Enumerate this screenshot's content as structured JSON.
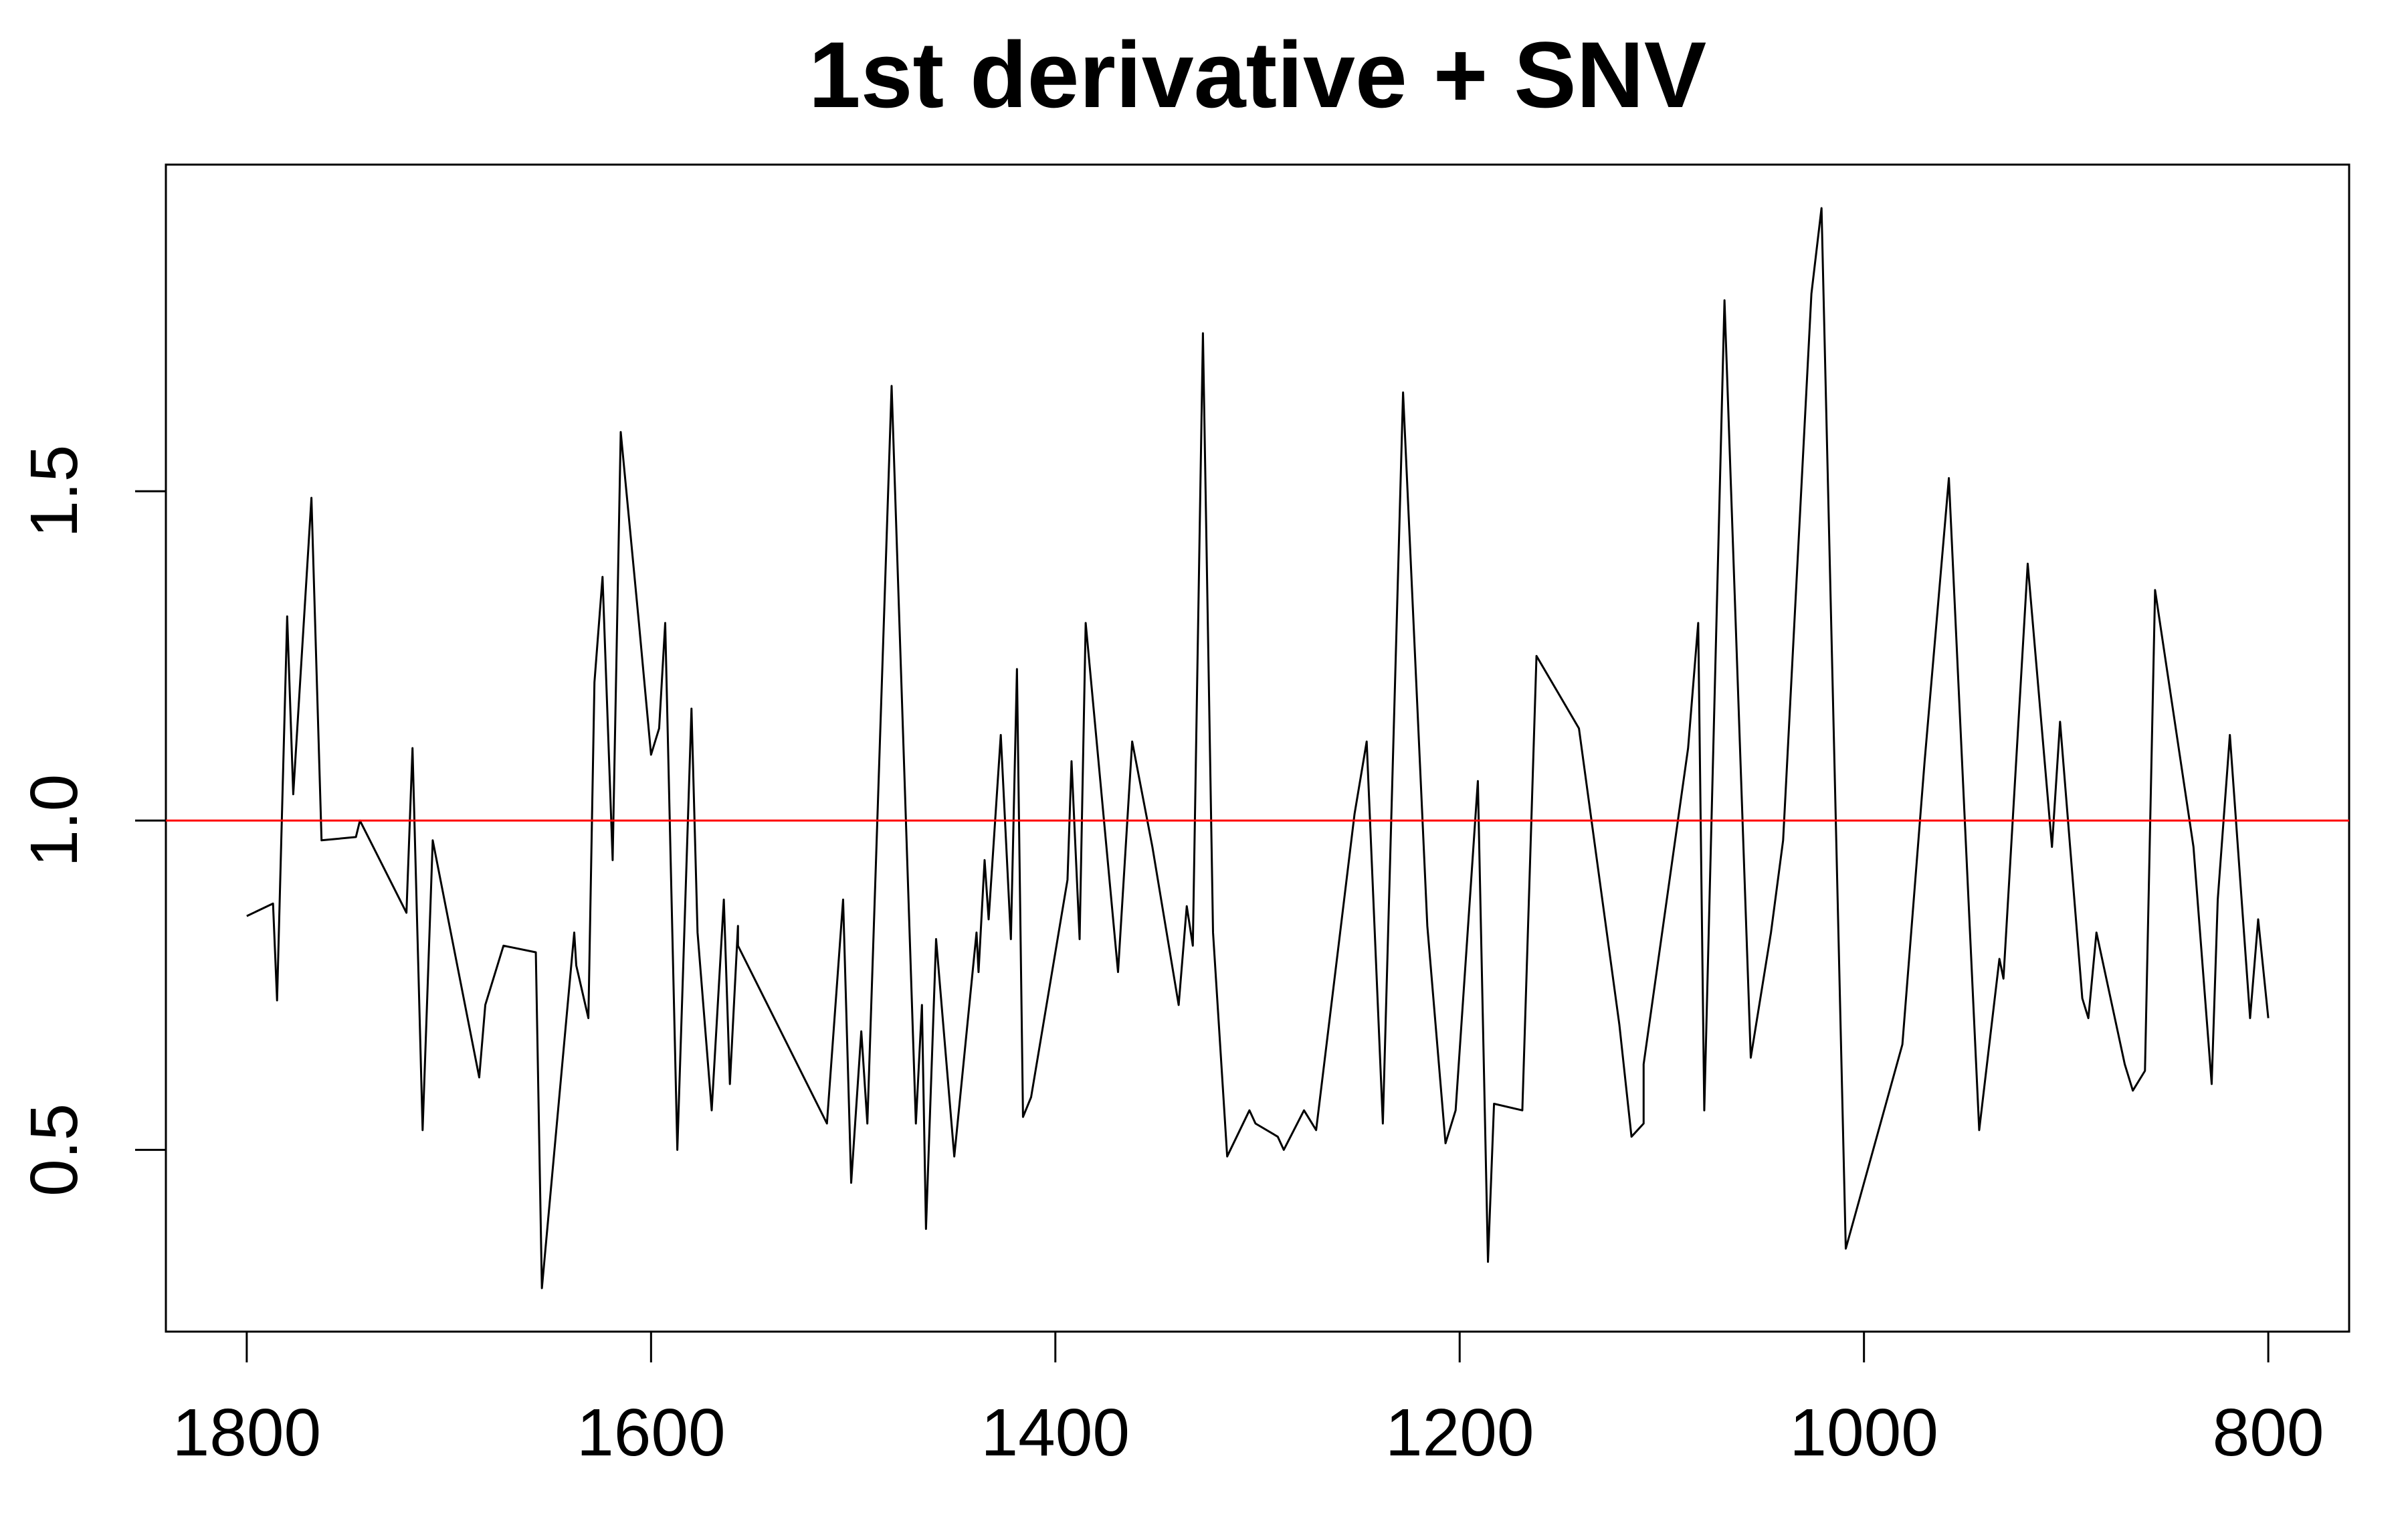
{
  "chart_data": {
    "type": "line",
    "title": "1st derivative + SNV",
    "x": [
      1800,
      1787,
      1785,
      1780,
      1777,
      1768,
      1763,
      1746,
      1744,
      1721,
      1718,
      1713,
      1708,
      1685,
      1682,
      1673,
      1657,
      1654,
      1638,
      1637,
      1631,
      1628,
      1624,
      1619,
      1615,
      1606,
      1600,
      1596,
      1593,
      1587,
      1580,
      1577,
      1570,
      1564,
      1561,
      1557,
      1557,
      1513,
      1505,
      1501,
      1496,
      1493,
      1481,
      1469,
      1466,
      1464,
      1459,
      1450,
      1439,
      1438,
      1435,
      1433,
      1427,
      1422,
      1419,
      1416,
      1412,
      1394,
      1392,
      1388,
      1385,
      1369,
      1362,
      1352,
      1339,
      1335,
      1332,
      1327,
      1322,
      1315,
      1304,
      1301,
      1290,
      1287,
      1277,
      1271,
      1252,
      1246,
      1238,
      1228,
      1216,
      1207,
      1202,
      1191,
      1186,
      1183,
      1169,
      1162,
      1141,
      1121,
      1115,
      1109,
      1109,
      1087,
      1082,
      1079,
      1069,
      1056,
      1046,
      1040,
      1026,
      1021,
      1009,
      981,
      970,
      958,
      943,
      933,
      931,
      919,
      907,
      903,
      892,
      889,
      885,
      871,
      867,
      861,
      856,
      837,
      828,
      825,
      819,
      809,
      805,
      800
    ],
    "values": [
      0.855,
      0.874,
      0.727,
      1.31,
      1.04,
      1.49,
      0.97,
      0.975,
      1.0,
      0.86,
      1.11,
      0.53,
      0.97,
      0.61,
      0.72,
      0.81,
      0.8,
      0.29,
      0.83,
      0.78,
      0.7,
      1.21,
      1.37,
      0.94,
      1.59,
      1.3,
      1.1,
      1.14,
      1.3,
      0.5,
      1.17,
      0.83,
      0.56,
      0.88,
      0.6,
      0.84,
      0.81,
      0.54,
      0.88,
      0.45,
      0.68,
      0.54,
      1.66,
      0.54,
      0.72,
      0.38,
      0.82,
      0.49,
      0.83,
      0.77,
      0.94,
      0.85,
      1.13,
      0.82,
      1.23,
      0.55,
      0.58,
      0.91,
      1.09,
      0.82,
      1.3,
      0.77,
      1.12,
      0.96,
      0.72,
      0.87,
      0.81,
      1.74,
      0.83,
      0.49,
      0.56,
      0.54,
      0.52,
      0.5,
      0.56,
      0.53,
      1.01,
      1.12,
      0.54,
      1.65,
      0.84,
      0.51,
      0.56,
      1.06,
      0.33,
      0.57,
      0.56,
      1.25,
      1.14,
      0.69,
      0.52,
      0.54,
      0.63,
      1.11,
      1.3,
      0.56,
      1.79,
      0.64,
      0.83,
      0.97,
      1.8,
      1.93,
      0.35,
      0.66,
      1.09,
      1.52,
      0.53,
      0.79,
      0.76,
      1.39,
      0.96,
      1.15,
      0.73,
      0.7,
      0.83,
      0.63,
      0.59,
      0.62,
      1.35,
      0.96,
      0.6,
      0.88,
      1.13,
      0.7,
      0.85,
      0.7
    ],
    "color": "#000000",
    "xlim": [
      1840,
      760
    ],
    "xticks": [
      1800,
      1600,
      1400,
      1200,
      1000,
      800
    ],
    "ylim": [
      0.224,
      1.996
    ],
    "yticks": [
      0.5,
      {
        "value": 1,
        "label": "1.0"
      },
      1.5
    ],
    "hline": {
      "value": 1,
      "color": "#ff0000"
    }
  }
}
